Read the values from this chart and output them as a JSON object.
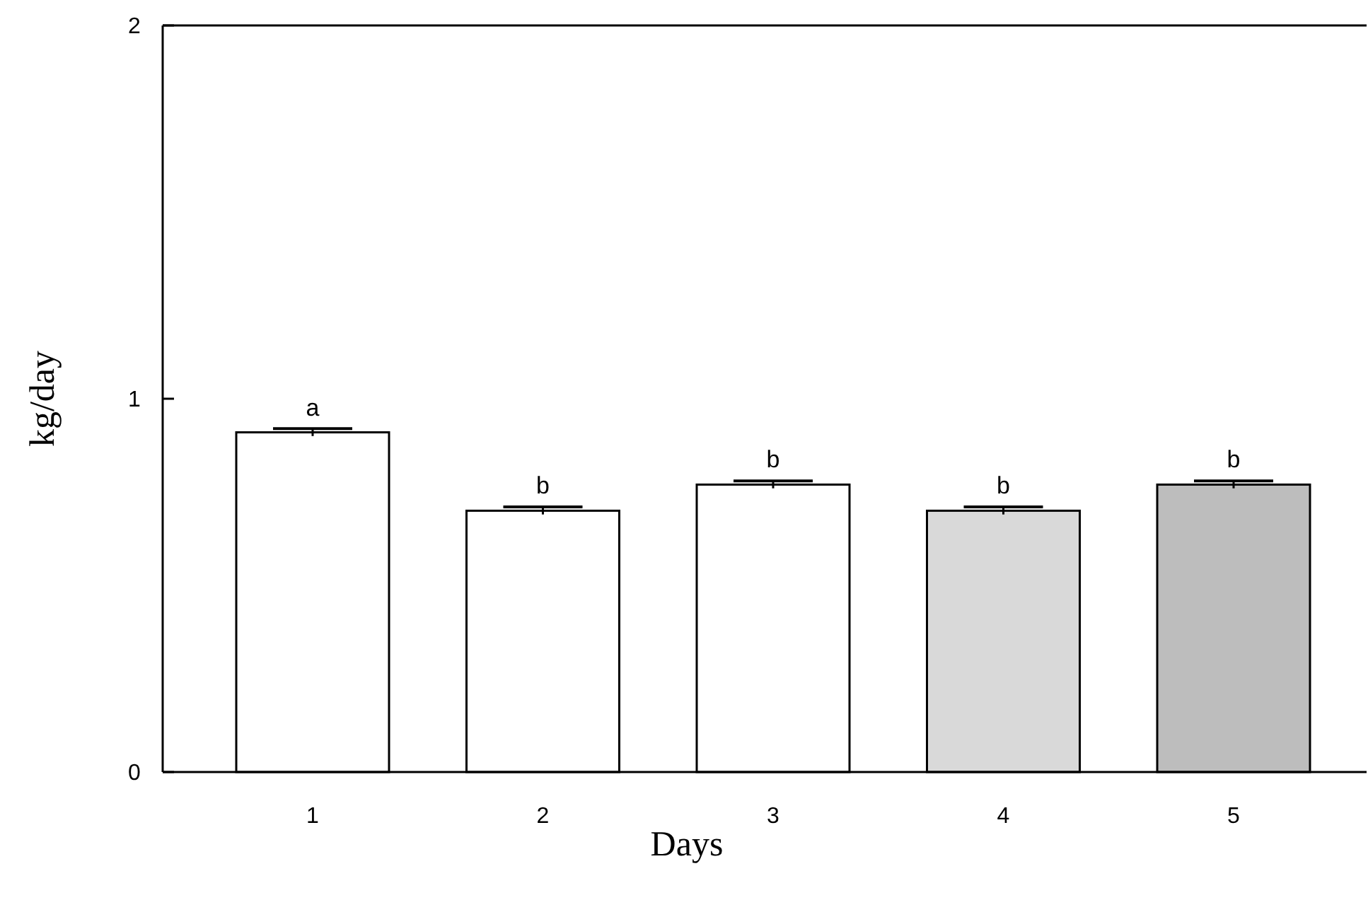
{
  "chart_data": {
    "type": "bar",
    "xlabel": "Days",
    "ylabel": "kg/day",
    "categories": [
      "1",
      "2",
      "3",
      "4",
      "5"
    ],
    "values": [
      0.91,
      0.7,
      0.77,
      0.7,
      0.77
    ],
    "errors": [
      0.01,
      0.01,
      0.01,
      0.01,
      0.01
    ],
    "colors": [
      "#ffffff",
      "#ffffff",
      "#ffffff",
      "#d9d9d9",
      "#bdbdbd"
    ],
    "ylim": [
      0,
      2
    ],
    "yticks": [
      0,
      1,
      2
    ],
    "grid": false,
    "annotations": [
      {
        "text": "a",
        "x": "1",
        "y": 0.91
      },
      {
        "text": "b",
        "x": "2",
        "y": 0.7
      },
      {
        "text": "b",
        "x": "3",
        "y": 0.77
      },
      {
        "text": "b",
        "x": "4",
        "y": 0.7
      },
      {
        "text": "b",
        "x": "5",
        "y": 0.77
      }
    ]
  }
}
